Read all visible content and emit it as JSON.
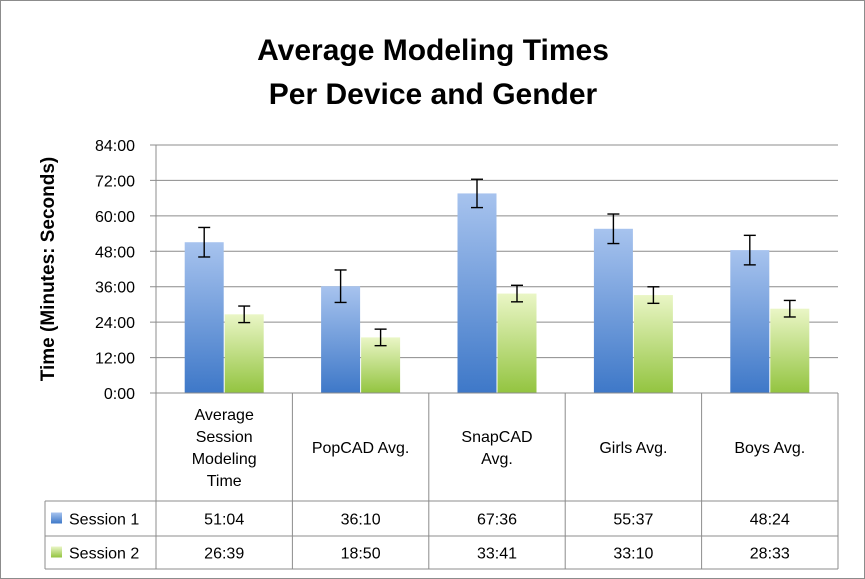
{
  "chart_data": {
    "type": "bar",
    "title_lines": [
      "Average Modeling Times",
      "Per Device and Gender"
    ],
    "ylabel": "Time (Minutes: Seconds)",
    "xlabel": "",
    "ylim": [
      0,
      84
    ],
    "y_ticks": [
      "0:00",
      "12:00",
      "24:00",
      "36:00",
      "48:00",
      "60:00",
      "72:00",
      "84:00"
    ],
    "y_tick_values": [
      0,
      12,
      24,
      36,
      48,
      60,
      72,
      84
    ],
    "grid": true,
    "legend_placement": "data-table",
    "categories": [
      [
        "Average",
        "Session",
        "Modeling",
        "Time"
      ],
      [
        "PopCAD Avg."
      ],
      [
        "SnapCAD",
        "Avg."
      ],
      [
        "Girls Avg."
      ],
      [
        "Boys Avg."
      ]
    ],
    "series": [
      {
        "name": "Session 1",
        "color": "#4f81bd",
        "values": [
          51.07,
          36.17,
          67.6,
          55.62,
          48.4
        ],
        "labels": [
          "51:04",
          "36:10",
          "67:36",
          "55:37",
          "48:24"
        ],
        "error": [
          5,
          5.5,
          4.8,
          5,
          5
        ]
      },
      {
        "name": "Session 2",
        "color": "#9bbb59",
        "values": [
          26.65,
          18.83,
          33.68,
          33.17,
          28.55
        ],
        "labels": [
          "26:39",
          "18:50",
          "33:41",
          "33:10",
          "28:33"
        ],
        "error": [
          2.8,
          2.8,
          2.8,
          2.8,
          2.8
        ]
      }
    ]
  }
}
